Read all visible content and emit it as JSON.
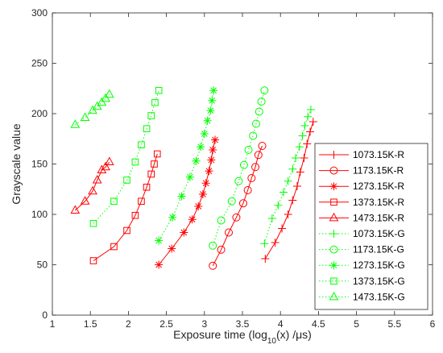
{
  "chart_data": {
    "type": "line",
    "xlabel": {
      "prefix": "Exposure time (log",
      "sub": "10",
      "suffix": "(x) /μs)"
    },
    "ylabel": "Grayscale value",
    "xlim": [
      1,
      6
    ],
    "ylim": [
      0,
      300
    ],
    "xticks": [
      1,
      1.5,
      2,
      2.5,
      3,
      3.5,
      4,
      4.5,
      5,
      5.5,
      6
    ],
    "xtick_labels": [
      "1",
      "1.5",
      "2",
      "2.5",
      "3",
      "3.5",
      "4",
      "4.5",
      "5",
      "5.5",
      "6"
    ],
    "yticks": [
      0,
      50,
      100,
      150,
      200,
      250,
      300
    ],
    "ytick_labels": [
      "0",
      "50",
      "100",
      "150",
      "200",
      "250",
      "300"
    ],
    "grid": false,
    "legend_position": "right",
    "series": [
      {
        "name": "1073.15K-R",
        "color": "#ff0000",
        "marker": "plus",
        "line": "solid",
        "points": [
          [
            3.8,
            56
          ],
          [
            3.93,
            72
          ],
          [
            4.02,
            86
          ],
          [
            4.1,
            100
          ],
          [
            4.16,
            114
          ],
          [
            4.22,
            128
          ],
          [
            4.26,
            142
          ],
          [
            4.31,
            156
          ],
          [
            4.35,
            170
          ],
          [
            4.39,
            182
          ],
          [
            4.43,
            192
          ]
        ]
      },
      {
        "name": "1173.15K-R",
        "color": "#ff0000",
        "marker": "circle",
        "line": "solid",
        "points": [
          [
            3.11,
            49
          ],
          [
            3.22,
            65
          ],
          [
            3.32,
            82
          ],
          [
            3.42,
            97
          ],
          [
            3.51,
            111
          ],
          [
            3.57,
            124
          ],
          [
            3.62,
            136
          ],
          [
            3.67,
            147
          ],
          [
            3.71,
            159
          ],
          [
            3.76,
            168
          ]
        ]
      },
      {
        "name": "1273.15K-R",
        "color": "#ff0000",
        "marker": "asterisk",
        "line": "solid",
        "points": [
          [
            2.4,
            50
          ],
          [
            2.57,
            66
          ],
          [
            2.73,
            82
          ],
          [
            2.84,
            95
          ],
          [
            2.92,
            108
          ],
          [
            2.98,
            120
          ],
          [
            3.02,
            131
          ],
          [
            3.06,
            143
          ],
          [
            3.09,
            154
          ],
          [
            3.11,
            164
          ],
          [
            3.14,
            174
          ]
        ]
      },
      {
        "name": "1373.15K-R",
        "color": "#ff0000",
        "marker": "square",
        "line": "solid",
        "points": [
          [
            1.54,
            54
          ],
          [
            1.81,
            68
          ],
          [
            1.98,
            84
          ],
          [
            2.09,
            99
          ],
          [
            2.17,
            113
          ],
          [
            2.24,
            127
          ],
          [
            2.3,
            140
          ],
          [
            2.34,
            150
          ],
          [
            2.38,
            160
          ]
        ]
      },
      {
        "name": "1473.15K-R",
        "color": "#ff0000",
        "marker": "triangle",
        "line": "solid",
        "points": [
          [
            1.3,
            104
          ],
          [
            1.43,
            113
          ],
          [
            1.53,
            123
          ],
          [
            1.59,
            134
          ],
          [
            1.65,
            144
          ],
          [
            1.7,
            147
          ],
          [
            1.75,
            152
          ]
        ]
      },
      {
        "name": "1073.15K-G",
        "color": "#00ff00",
        "marker": "plus",
        "line": "dotted",
        "points": [
          [
            3.79,
            71
          ],
          [
            3.89,
            96
          ],
          [
            3.97,
            109
          ],
          [
            4.04,
            122
          ],
          [
            4.1,
            133
          ],
          [
            4.16,
            145
          ],
          [
            4.2,
            156
          ],
          [
            4.25,
            167
          ],
          [
            4.29,
            178
          ],
          [
            4.32,
            188
          ],
          [
            4.36,
            197
          ],
          [
            4.4,
            204
          ]
        ]
      },
      {
        "name": "1173.15K-G",
        "color": "#00ff00",
        "marker": "circle",
        "line": "dotted",
        "points": [
          [
            3.11,
            69
          ],
          [
            3.22,
            94
          ],
          [
            3.36,
            113
          ],
          [
            3.45,
            133
          ],
          [
            3.52,
            149
          ],
          [
            3.58,
            164
          ],
          [
            3.64,
            178
          ],
          [
            3.68,
            190
          ],
          [
            3.72,
            202
          ],
          [
            3.75,
            212
          ],
          [
            3.79,
            223
          ]
        ]
      },
      {
        "name": "1273.15K-G",
        "color": "#00ff00",
        "marker": "asterisk",
        "line": "dotted",
        "points": [
          [
            2.4,
            74
          ],
          [
            2.58,
            97
          ],
          [
            2.7,
            118
          ],
          [
            2.81,
            137
          ],
          [
            2.89,
            153
          ],
          [
            2.95,
            167
          ],
          [
            3.0,
            180
          ],
          [
            3.04,
            193
          ],
          [
            3.08,
            203
          ],
          [
            3.1,
            213
          ],
          [
            3.12,
            223
          ]
        ]
      },
      {
        "name": "1373.15K-G",
        "color": "#00ff00",
        "marker": "square",
        "line": "dotted",
        "points": [
          [
            1.54,
            91
          ],
          [
            1.81,
            113
          ],
          [
            1.98,
            134
          ],
          [
            2.09,
            152
          ],
          [
            2.17,
            169
          ],
          [
            2.24,
            185
          ],
          [
            2.3,
            198
          ],
          [
            2.35,
            211
          ],
          [
            2.4,
            223
          ]
        ]
      },
      {
        "name": "1473.15K-G",
        "color": "#00ff00",
        "marker": "triangle",
        "line": "dotted",
        "points": [
          [
            1.3,
            189
          ],
          [
            1.43,
            196
          ],
          [
            1.53,
            203
          ],
          [
            1.59,
            207
          ],
          [
            1.65,
            211
          ],
          [
            1.7,
            215
          ],
          [
            1.75,
            219
          ]
        ]
      }
    ]
  }
}
